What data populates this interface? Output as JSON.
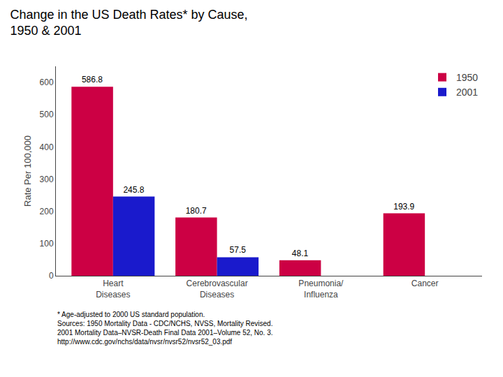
{
  "chart_data": {
    "type": "bar",
    "title": "Change in the US Death Rates* by Cause,\n1950 & 2001",
    "ylabel": "Rate Per 100,000",
    "categories": [
      "Heart\nDiseases",
      "Cerebrovascular\nDiseases",
      "Pneumonia/\nInfluenza",
      "Cancer"
    ],
    "series": [
      {
        "name": "1950",
        "color": "#CC0044",
        "values": [
          586.8,
          180.7,
          48.1,
          193.9
        ]
      },
      {
        "name": "2001",
        "color": "#1A1ACC",
        "values": [
          245.8,
          57.5,
          null,
          null
        ]
      }
    ],
    "ylim": [
      0,
      650
    ],
    "yticks": [
      0,
      100,
      200,
      300,
      400,
      500,
      600
    ],
    "grid": false,
    "legend": "upper right",
    "data_labels": true,
    "annotations": [
      "* Age-adjusted to 2000 US standard population.\nSources: 1950 Mortality Data - CDC/NCHS, NVSS, Mortality Revised.\n2001 Mortality Data–NVSR-Death Final Data 2001–Volume 52, No. 3.\nhttp://www.cdc.gov/nchs/data/nvsr/nvsr52/nvsr52_03.pdf"
    ]
  }
}
